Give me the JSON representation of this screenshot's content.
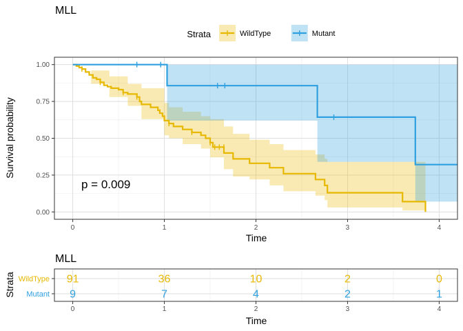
{
  "chart_data": [
    {
      "type": "line",
      "subtype": "kaplan-meier",
      "title": "MLL",
      "xlabel": "Time",
      "ylabel": "Survival probability",
      "xlim": [
        -0.2,
        4.2
      ],
      "ylim": [
        -0.05,
        1.05
      ],
      "xticks": [
        "0",
        "1",
        "2",
        "3",
        "4"
      ],
      "yticks": [
        "0.00",
        "0.25",
        "0.50",
        "0.75",
        "1.00"
      ],
      "grid": true,
      "legend": {
        "title": "Strata",
        "position": "top",
        "entries": [
          "WildType",
          "Mutant"
        ]
      },
      "annotation": "p = 0.009",
      "series": [
        {
          "name": "WildType",
          "color": "#E7B800",
          "steps": [
            [
              0,
              1.0
            ],
            [
              0.04,
              0.99
            ],
            [
              0.07,
              0.98
            ],
            [
              0.1,
              0.97
            ],
            [
              0.14,
              0.95
            ],
            [
              0.18,
              0.93
            ],
            [
              0.22,
              0.91
            ],
            [
              0.26,
              0.9
            ],
            [
              0.3,
              0.88
            ],
            [
              0.34,
              0.86
            ],
            [
              0.38,
              0.85
            ],
            [
              0.42,
              0.84
            ],
            [
              0.5,
              0.83
            ],
            [
              0.55,
              0.81
            ],
            [
              0.6,
              0.8
            ],
            [
              0.7,
              0.78
            ],
            [
              0.73,
              0.75
            ],
            [
              0.75,
              0.73
            ],
            [
              0.85,
              0.71
            ],
            [
              0.93,
              0.69
            ],
            [
              0.95,
              0.67
            ],
            [
              0.98,
              0.65
            ],
            [
              1.0,
              0.62
            ],
            [
              1.05,
              0.6
            ],
            [
              1.1,
              0.58
            ],
            [
              1.2,
              0.56
            ],
            [
              1.3,
              0.54
            ],
            [
              1.4,
              0.52
            ],
            [
              1.45,
              0.5
            ],
            [
              1.5,
              0.47
            ],
            [
              1.53,
              0.44
            ],
            [
              1.65,
              0.4
            ],
            [
              1.75,
              0.36
            ],
            [
              1.93,
              0.33
            ],
            [
              2.15,
              0.3
            ],
            [
              2.3,
              0.26
            ],
            [
              2.65,
              0.22
            ],
            [
              2.75,
              0.18
            ],
            [
              2.78,
              0.13
            ],
            [
              3.6,
              0.07
            ],
            [
              3.85,
              0.0
            ]
          ],
          "end": 3.85,
          "ci_upper": [
            [
              0,
              1.0
            ],
            [
              0.2,
              0.96
            ],
            [
              0.4,
              0.92
            ],
            [
              0.6,
              0.87
            ],
            [
              0.75,
              0.84
            ],
            [
              1.0,
              0.74
            ],
            [
              1.05,
              0.71
            ],
            [
              1.2,
              0.68
            ],
            [
              1.4,
              0.65
            ],
            [
              1.5,
              0.63
            ],
            [
              1.65,
              0.58
            ],
            [
              1.75,
              0.53
            ],
            [
              1.93,
              0.49
            ],
            [
              2.15,
              0.46
            ],
            [
              2.3,
              0.42
            ],
            [
              2.65,
              0.39
            ],
            [
              2.75,
              0.36
            ],
            [
              2.78,
              0.34
            ],
            [
              3.6,
              0.34
            ],
            [
              3.85,
              0.34
            ]
          ],
          "ci_lower": [
            [
              0,
              1.0
            ],
            [
              0.2,
              0.87
            ],
            [
              0.4,
              0.78
            ],
            [
              0.6,
              0.72
            ],
            [
              0.75,
              0.63
            ],
            [
              1.0,
              0.52
            ],
            [
              1.05,
              0.5
            ],
            [
              1.2,
              0.46
            ],
            [
              1.4,
              0.43
            ],
            [
              1.5,
              0.37
            ],
            [
              1.65,
              0.29
            ],
            [
              1.75,
              0.24
            ],
            [
              1.93,
              0.22
            ],
            [
              2.15,
              0.18
            ],
            [
              2.3,
              0.14
            ],
            [
              2.65,
              0.11
            ],
            [
              2.75,
              0.08
            ],
            [
              2.78,
              0.03
            ],
            [
              3.6,
              0.01
            ],
            [
              3.85,
              0.0
            ]
          ],
          "censored": [
            [
              0.1,
              0.97
            ],
            [
              0.3,
              0.88
            ],
            [
              0.55,
              0.81
            ],
            [
              0.7,
              0.78
            ],
            [
              1.05,
              0.6
            ],
            [
              1.3,
              0.54
            ],
            [
              1.5,
              0.47
            ],
            [
              1.55,
              0.44
            ],
            [
              1.6,
              0.44
            ],
            [
              1.65,
              0.44
            ]
          ]
        },
        {
          "name": "Mutant",
          "color": "#2E9FDF",
          "steps": [
            [
              0,
              1.0
            ],
            [
              1.03,
              0.857
            ],
            [
              2.67,
              0.643
            ],
            [
              3.74,
              0.321
            ]
          ],
          "end": 4.2,
          "ci_upper": [
            [
              0,
              1.0
            ],
            [
              4.2,
              1.0
            ]
          ],
          "ci_lower": [
            [
              0,
              1.0
            ],
            [
              1.03,
              0.62
            ],
            [
              2.67,
              0.34
            ],
            [
              3.74,
              0.07
            ],
            [
              4.2,
              0.07
            ]
          ],
          "censored": [
            [
              0.7,
              1.0
            ],
            [
              0.96,
              1.0
            ],
            [
              1.58,
              0.857
            ],
            [
              1.66,
              0.857
            ],
            [
              2.85,
              0.643
            ]
          ]
        }
      ]
    },
    {
      "type": "table",
      "title": "MLL",
      "xlabel": "Time",
      "ylabel": "Strata",
      "x": [
        0,
        1,
        2,
        3,
        4
      ],
      "xticks": [
        "0",
        "1",
        "2",
        "3",
        "4"
      ],
      "rows": [
        {
          "name": "WildType",
          "color": "#E7B800",
          "values": [
            "91",
            "36",
            "10",
            "2",
            "0"
          ]
        },
        {
          "name": "Mutant",
          "color": "#2E9FDF",
          "values": [
            "9",
            "7",
            "4",
            "2",
            "1"
          ]
        }
      ]
    }
  ]
}
